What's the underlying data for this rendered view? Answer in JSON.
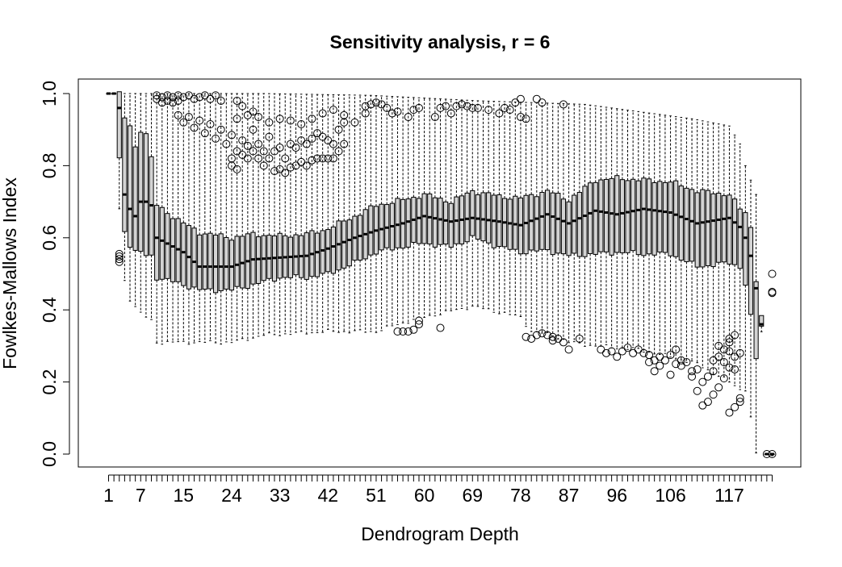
{
  "chart_data": {
    "type": "boxplot",
    "title": "Sensitivity analysis, r = 6",
    "xlabel": "Dendrogram Depth",
    "ylabel": "Fowlkes-Mallows Index",
    "ylim": [
      0.0,
      1.0
    ],
    "xlim": [
      1,
      125
    ],
    "n_boxes": 125,
    "y_ticks": [
      0.0,
      0.2,
      0.4,
      0.6,
      0.8,
      1.0
    ],
    "y_tick_labels": [
      "0.0",
      "0.2",
      "0.4",
      "0.6",
      "0.8",
      "1.0"
    ],
    "x_tick_labels": [
      {
        "pos": 1,
        "label": "1"
      },
      {
        "pos": 7,
        "label": "7"
      },
      {
        "pos": 15,
        "label": "15"
      },
      {
        "pos": 24,
        "label": "24"
      },
      {
        "pos": 33,
        "label": "33"
      },
      {
        "pos": 42,
        "label": "42"
      },
      {
        "pos": 51,
        "label": "51"
      },
      {
        "pos": 60,
        "label": "60"
      },
      {
        "pos": 69,
        "label": "69"
      },
      {
        "pos": 78,
        "label": "78"
      },
      {
        "pos": 87,
        "label": "87"
      },
      {
        "pos": 96,
        "label": "96"
      },
      {
        "pos": 106,
        "label": "106"
      },
      {
        "pos": 117,
        "label": "117"
      }
    ],
    "median_profile": [
      [
        1,
        1.0
      ],
      [
        2,
        1.0
      ],
      [
        3,
        0.96
      ],
      [
        4,
        0.72
      ],
      [
        5,
        0.68
      ],
      [
        6,
        0.66
      ],
      [
        7,
        0.7
      ],
      [
        8,
        0.7
      ],
      [
        9,
        0.69
      ],
      [
        10,
        0.6
      ],
      [
        15,
        0.56
      ],
      [
        18,
        0.52
      ],
      [
        24,
        0.52
      ],
      [
        28,
        0.54
      ],
      [
        33,
        0.545
      ],
      [
        38,
        0.55
      ],
      [
        42,
        0.57
      ],
      [
        47,
        0.6
      ],
      [
        51,
        0.62
      ],
      [
        56,
        0.64
      ],
      [
        60,
        0.66
      ],
      [
        65,
        0.645
      ],
      [
        69,
        0.655
      ],
      [
        74,
        0.645
      ],
      [
        78,
        0.635
      ],
      [
        83,
        0.665
      ],
      [
        87,
        0.64
      ],
      [
        92,
        0.675
      ],
      [
        96,
        0.665
      ],
      [
        101,
        0.68
      ],
      [
        106,
        0.67
      ],
      [
        111,
        0.64
      ],
      [
        117,
        0.655
      ],
      [
        119,
        0.63
      ],
      [
        120,
        0.6
      ],
      [
        121,
        0.55
      ],
      [
        122,
        0.46
      ],
      [
        123,
        0.36
      ],
      [
        124,
        0.0
      ],
      [
        125,
        0.0
      ]
    ],
    "q1_profile": [
      [
        1,
        1.0
      ],
      [
        2,
        1.0
      ],
      [
        3,
        0.82
      ],
      [
        4,
        0.62
      ],
      [
        5,
        0.58
      ],
      [
        6,
        0.56
      ],
      [
        7,
        0.56
      ],
      [
        8,
        0.55
      ],
      [
        9,
        0.55
      ],
      [
        10,
        0.49
      ],
      [
        15,
        0.47
      ],
      [
        18,
        0.455
      ],
      [
        24,
        0.455
      ],
      [
        28,
        0.47
      ],
      [
        33,
        0.49
      ],
      [
        38,
        0.49
      ],
      [
        42,
        0.5
      ],
      [
        47,
        0.53
      ],
      [
        51,
        0.56
      ],
      [
        56,
        0.575
      ],
      [
        60,
        0.585
      ],
      [
        65,
        0.575
      ],
      [
        69,
        0.6
      ],
      [
        74,
        0.575
      ],
      [
        78,
        0.56
      ],
      [
        83,
        0.565
      ],
      [
        87,
        0.55
      ],
      [
        92,
        0.555
      ],
      [
        96,
        0.56
      ],
      [
        101,
        0.555
      ],
      [
        106,
        0.555
      ],
      [
        111,
        0.52
      ],
      [
        117,
        0.53
      ],
      [
        119,
        0.52
      ],
      [
        120,
        0.47
      ],
      [
        121,
        0.38
      ],
      [
        122,
        0.265
      ],
      [
        123,
        0.355
      ],
      [
        124,
        0.0
      ],
      [
        125,
        0.0
      ]
    ],
    "q3_profile": [
      [
        1,
        1.0
      ],
      [
        2,
        1.0
      ],
      [
        3,
        1.0
      ],
      [
        4,
        0.93
      ],
      [
        5,
        0.91
      ],
      [
        6,
        0.85
      ],
      [
        7,
        0.9
      ],
      [
        8,
        0.89
      ],
      [
        9,
        0.82
      ],
      [
        10,
        0.69
      ],
      [
        15,
        0.64
      ],
      [
        18,
        0.615
      ],
      [
        24,
        0.6
      ],
      [
        28,
        0.61
      ],
      [
        33,
        0.605
      ],
      [
        38,
        0.61
      ],
      [
        42,
        0.625
      ],
      [
        47,
        0.66
      ],
      [
        51,
        0.69
      ],
      [
        56,
        0.705
      ],
      [
        60,
        0.72
      ],
      [
        65,
        0.7
      ],
      [
        69,
        0.73
      ],
      [
        74,
        0.715
      ],
      [
        78,
        0.71
      ],
      [
        83,
        0.73
      ],
      [
        87,
        0.705
      ],
      [
        92,
        0.76
      ],
      [
        96,
        0.765
      ],
      [
        101,
        0.76
      ],
      [
        106,
        0.755
      ],
      [
        111,
        0.73
      ],
      [
        117,
        0.72
      ],
      [
        119,
        0.68
      ],
      [
        120,
        0.67
      ],
      [
        121,
        0.63
      ],
      [
        122,
        0.485
      ],
      [
        123,
        0.38
      ],
      [
        124,
        0.0
      ],
      [
        125,
        0.0
      ]
    ],
    "upper_whisker_profile": [
      [
        1,
        1.0
      ],
      [
        3,
        1.0
      ],
      [
        10,
        1.0
      ],
      [
        30,
        1.0
      ],
      [
        50,
        0.995
      ],
      [
        70,
        0.98
      ],
      [
        90,
        0.97
      ],
      [
        100,
        0.95
      ],
      [
        110,
        0.93
      ],
      [
        117,
        0.91
      ],
      [
        119,
        0.86
      ],
      [
        120,
        0.8
      ],
      [
        121,
        0.76
      ],
      [
        122,
        0.72
      ],
      [
        123,
        0.38
      ],
      [
        124,
        0.0
      ],
      [
        125,
        0.0
      ]
    ],
    "lower_whisker_profile": [
      [
        1,
        1.0
      ],
      [
        2,
        1.0
      ],
      [
        3,
        0.68
      ],
      [
        4,
        0.48
      ],
      [
        5,
        0.43
      ],
      [
        6,
        0.41
      ],
      [
        7,
        0.39
      ],
      [
        9,
        0.37
      ],
      [
        10,
        0.31
      ],
      [
        24,
        0.31
      ],
      [
        30,
        0.33
      ],
      [
        42,
        0.34
      ],
      [
        51,
        0.34
      ],
      [
        55,
        0.36
      ],
      [
        60,
        0.38
      ],
      [
        69,
        0.41
      ],
      [
        78,
        0.38
      ],
      [
        80,
        0.34
      ],
      [
        84,
        0.33
      ],
      [
        87,
        0.31
      ],
      [
        92,
        0.3
      ],
      [
        100,
        0.29
      ],
      [
        106,
        0.27
      ],
      [
        111,
        0.25
      ],
      [
        117,
        0.2
      ],
      [
        119,
        0.18
      ],
      [
        120,
        0.18
      ],
      [
        121,
        0.1
      ],
      [
        122,
        0.0
      ],
      [
        123,
        0.34
      ],
      [
        124,
        0.0
      ],
      [
        125,
        0.0
      ]
    ],
    "outliers": [
      [
        3,
        0.555
      ],
      [
        3,
        0.548
      ],
      [
        3,
        0.541
      ],
      [
        3,
        0.533
      ],
      [
        10,
        0.995
      ],
      [
        10,
        0.985
      ],
      [
        11,
        0.99
      ],
      [
        11,
        0.975
      ],
      [
        12,
        0.995
      ],
      [
        12,
        0.98
      ],
      [
        13,
        0.99
      ],
      [
        13,
        0.975
      ],
      [
        14,
        0.995
      ],
      [
        14,
        0.98
      ],
      [
        15,
        0.99
      ],
      [
        16,
        0.995
      ],
      [
        17,
        0.985
      ],
      [
        18,
        0.99
      ],
      [
        19,
        0.995
      ],
      [
        20,
        0.985
      ],
      [
        21,
        0.995
      ],
      [
        22,
        0.98
      ],
      [
        14,
        0.94
      ],
      [
        15,
        0.92
      ],
      [
        16,
        0.935
      ],
      [
        17,
        0.905
      ],
      [
        18,
        0.925
      ],
      [
        19,
        0.89
      ],
      [
        20,
        0.915
      ],
      [
        21,
        0.875
      ],
      [
        22,
        0.9
      ],
      [
        23,
        0.86
      ],
      [
        24,
        0.885
      ],
      [
        25,
        0.84
      ],
      [
        24,
        0.82
      ],
      [
        24,
        0.8
      ],
      [
        25,
        0.79
      ],
      [
        26,
        0.83
      ],
      [
        26,
        0.87
      ],
      [
        27,
        0.82
      ],
      [
        27,
        0.855
      ],
      [
        28,
        0.84
      ],
      [
        28,
        0.9
      ],
      [
        29,
        0.82
      ],
      [
        29,
        0.86
      ],
      [
        30,
        0.8
      ],
      [
        30,
        0.84
      ],
      [
        31,
        0.82
      ],
      [
        31,
        0.88
      ],
      [
        32,
        0.785
      ],
      [
        32,
        0.84
      ],
      [
        33,
        0.79
      ],
      [
        33,
        0.85
      ],
      [
        34,
        0.78
      ],
      [
        34,
        0.82
      ],
      [
        35,
        0.795
      ],
      [
        35,
        0.86
      ],
      [
        36,
        0.8
      ],
      [
        36,
        0.85
      ],
      [
        37,
        0.81
      ],
      [
        37,
        0.87
      ],
      [
        38,
        0.8
      ],
      [
        38,
        0.86
      ],
      [
        39,
        0.815
      ],
      [
        39,
        0.875
      ],
      [
        40,
        0.82
      ],
      [
        40,
        0.89
      ],
      [
        41,
        0.82
      ],
      [
        41,
        0.88
      ],
      [
        42,
        0.82
      ],
      [
        42,
        0.87
      ],
      [
        43,
        0.82
      ],
      [
        43,
        0.86
      ],
      [
        44,
        0.84
      ],
      [
        44,
        0.9
      ],
      [
        45,
        0.86
      ],
      [
        45,
        0.92
      ],
      [
        25,
        0.93
      ],
      [
        27,
        0.94
      ],
      [
        29,
        0.935
      ],
      [
        31,
        0.92
      ],
      [
        33,
        0.93
      ],
      [
        35,
        0.925
      ],
      [
        37,
        0.915
      ],
      [
        39,
        0.93
      ],
      [
        41,
        0.945
      ],
      [
        43,
        0.955
      ],
      [
        45,
        0.94
      ],
      [
        47,
        0.92
      ],
      [
        49,
        0.945
      ],
      [
        26,
        0.965
      ],
      [
        28,
        0.95
      ],
      [
        25,
        0.98
      ],
      [
        49,
        0.965
      ],
      [
        50,
        0.97
      ],
      [
        51,
        0.975
      ],
      [
        52,
        0.97
      ],
      [
        53,
        0.96
      ],
      [
        54,
        0.945
      ],
      [
        55,
        0.95
      ],
      [
        57,
        0.935
      ],
      [
        58,
        0.955
      ],
      [
        59,
        0.96
      ],
      [
        62,
        0.935
      ],
      [
        63,
        0.96
      ],
      [
        64,
        0.965
      ],
      [
        65,
        0.945
      ],
      [
        66,
        0.965
      ],
      [
        67,
        0.97
      ],
      [
        68,
        0.965
      ],
      [
        69,
        0.96
      ],
      [
        70,
        0.96
      ],
      [
        72,
        0.955
      ],
      [
        74,
        0.945
      ],
      [
        75,
        0.96
      ],
      [
        76,
        0.955
      ],
      [
        77,
        0.975
      ],
      [
        78,
        0.985
      ],
      [
        78,
        0.935
      ],
      [
        79,
        0.93
      ],
      [
        81,
        0.985
      ],
      [
        82,
        0.975
      ],
      [
        86,
        0.97
      ],
      [
        55,
        0.34
      ],
      [
        56,
        0.34
      ],
      [
        57,
        0.34
      ],
      [
        58,
        0.345
      ],
      [
        59,
        0.36
      ],
      [
        59,
        0.37
      ],
      [
        63,
        0.35
      ],
      [
        79,
        0.325
      ],
      [
        80,
        0.32
      ],
      [
        81,
        0.33
      ],
      [
        82,
        0.335
      ],
      [
        83,
        0.33
      ],
      [
        84,
        0.325
      ],
      [
        84,
        0.315
      ],
      [
        85,
        0.32
      ],
      [
        86,
        0.31
      ],
      [
        87,
        0.29
      ],
      [
        89,
        0.32
      ],
      [
        93,
        0.29
      ],
      [
        94,
        0.28
      ],
      [
        95,
        0.285
      ],
      [
        96,
        0.27
      ],
      [
        97,
        0.285
      ],
      [
        98,
        0.295
      ],
      [
        99,
        0.28
      ],
      [
        100,
        0.29
      ],
      [
        101,
        0.28
      ],
      [
        102,
        0.275
      ],
      [
        102,
        0.255
      ],
      [
        103,
        0.26
      ],
      [
        103,
        0.23
      ],
      [
        104,
        0.27
      ],
      [
        104,
        0.245
      ],
      [
        105,
        0.26
      ],
      [
        106,
        0.275
      ],
      [
        106,
        0.22
      ],
      [
        107,
        0.29
      ],
      [
        107,
        0.25
      ],
      [
        108,
        0.26
      ],
      [
        108,
        0.245
      ],
      [
        109,
        0.255
      ],
      [
        110,
        0.23
      ],
      [
        110,
        0.215
      ],
      [
        111,
        0.235
      ],
      [
        111,
        0.175
      ],
      [
        112,
        0.2
      ],
      [
        112,
        0.135
      ],
      [
        113,
        0.215
      ],
      [
        113,
        0.145
      ],
      [
        114,
        0.23
      ],
      [
        114,
        0.165
      ],
      [
        114,
        0.26
      ],
      [
        115,
        0.27
      ],
      [
        115,
        0.185
      ],
      [
        115,
        0.3
      ],
      [
        116,
        0.29
      ],
      [
        116,
        0.255
      ],
      [
        116,
        0.21
      ],
      [
        117,
        0.31
      ],
      [
        117,
        0.32
      ],
      [
        117,
        0.285
      ],
      [
        117,
        0.24
      ],
      [
        117,
        0.115
      ],
      [
        118,
        0.33
      ],
      [
        118,
        0.27
      ],
      [
        118,
        0.235
      ],
      [
        118,
        0.13
      ],
      [
        119,
        0.28
      ],
      [
        119,
        0.155
      ],
      [
        119,
        0.145
      ],
      [
        125,
        0.5
      ],
      [
        125,
        0.45
      ],
      [
        125,
        0.447
      ],
      [
        124,
        0.0
      ],
      [
        125,
        0.0
      ]
    ]
  }
}
